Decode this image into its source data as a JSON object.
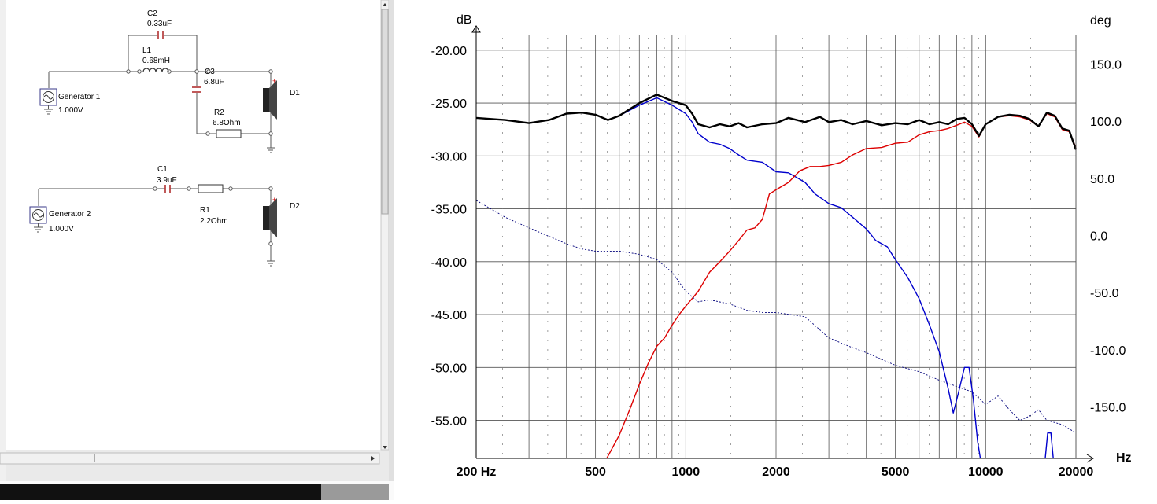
{
  "schematic": {
    "C2": {
      "name": "C2",
      "value": "0.33uF"
    },
    "L1": {
      "name": "L1",
      "value": "0.68mH"
    },
    "C3": {
      "name": "C3",
      "value": "6.8uF"
    },
    "R2": {
      "name": "R2",
      "value": "6.8Ohm"
    },
    "D1": {
      "name": "D1"
    },
    "gen1": {
      "name": "Generator 1",
      "value": "1.000V"
    },
    "C1": {
      "name": "C1",
      "value": "3.9uF"
    },
    "R1": {
      "name": "R1",
      "value": "2.2Ohm"
    },
    "D2": {
      "name": "D2"
    },
    "gen2": {
      "name": "Generator 2",
      "value": "1.000V"
    }
  },
  "chart_data": {
    "type": "line",
    "y_left_unit": "dB",
    "y_right_unit": "deg",
    "x_unit": "Hz",
    "x_scale": "log",
    "xlim": [
      200,
      20000
    ],
    "ylim_left": [
      -58.6,
      -18.6
    ],
    "ylim_right": [
      -195,
      175
    ],
    "x_tick_labels": [
      {
        "v": 200,
        "t": "200 Hz"
      },
      {
        "v": 500,
        "t": "500"
      },
      {
        "v": 1000,
        "t": "1000"
      },
      {
        "v": 2000,
        "t": "2000"
      },
      {
        "v": 5000,
        "t": "5000"
      },
      {
        "v": 10000,
        "t": "10000"
      },
      {
        "v": 20000,
        "t": "20000"
      }
    ],
    "y_left_ticks": [
      {
        "v": -20,
        "t": "-20.00"
      },
      {
        "v": -25,
        "t": "-25.00"
      },
      {
        "v": -30,
        "t": "-30.00"
      },
      {
        "v": -35,
        "t": "-35.00"
      },
      {
        "v": -40,
        "t": "-40.00"
      },
      {
        "v": -45,
        "t": "-45.00"
      },
      {
        "v": -50,
        "t": "-50.00"
      },
      {
        "v": -55,
        "t": "-55.00"
      }
    ],
    "y_right_ticks": [
      {
        "v": 150,
        "t": "150.0"
      },
      {
        "v": 100,
        "t": "100.0"
      },
      {
        "v": 50,
        "t": "50.0"
      },
      {
        "v": 0,
        "t": "0.0"
      },
      {
        "v": -50,
        "t": "-50.0"
      },
      {
        "v": -100,
        "t": "-100.0"
      },
      {
        "v": -150,
        "t": "-150.0"
      }
    ],
    "grid": true,
    "series": [
      {
        "color": "#0000cc",
        "axis": "left",
        "style": "solid",
        "points": [
          [
            200,
            -26.4
          ],
          [
            250,
            -26.6
          ],
          [
            300,
            -26.9
          ],
          [
            350,
            -26.6
          ],
          [
            400,
            -26.0
          ],
          [
            450,
            -25.9
          ],
          [
            500,
            -26.1
          ],
          [
            550,
            -26.6
          ],
          [
            600,
            -26.2
          ],
          [
            700,
            -25.2
          ],
          [
            800,
            -24.5
          ],
          [
            900,
            -25.2
          ],
          [
            1000,
            -26.0
          ],
          [
            1050,
            -26.8
          ],
          [
            1100,
            -27.9
          ],
          [
            1200,
            -28.7
          ],
          [
            1300,
            -28.9
          ],
          [
            1400,
            -29.3
          ],
          [
            1500,
            -29.9
          ],
          [
            1600,
            -30.4
          ],
          [
            1800,
            -30.6
          ],
          [
            2000,
            -31.5
          ],
          [
            2200,
            -31.6
          ],
          [
            2500,
            -32.5
          ],
          [
            2700,
            -33.6
          ],
          [
            3000,
            -34.5
          ],
          [
            3300,
            -34.9
          ],
          [
            3600,
            -35.8
          ],
          [
            4000,
            -36.9
          ],
          [
            4300,
            -38.0
          ],
          [
            4700,
            -38.6
          ],
          [
            5000,
            -39.8
          ],
          [
            5500,
            -41.5
          ],
          [
            6000,
            -43.5
          ],
          [
            6500,
            -46.0
          ],
          [
            7000,
            -48.5
          ],
          [
            7500,
            -52.0
          ],
          [
            7800,
            -54.3
          ],
          [
            8100,
            -52.5
          ],
          [
            8500,
            -50.0
          ],
          [
            8800,
            -50.0
          ],
          [
            9100,
            -53.0
          ],
          [
            9400,
            -57.0
          ],
          [
            9600,
            -58.6
          ]
        ]
      },
      {
        "color": "#0000cc",
        "axis": "left",
        "style": "solid",
        "points": [
          [
            15800,
            -58.6
          ],
          [
            16100,
            -56.2
          ],
          [
            16500,
            -56.2
          ],
          [
            16800,
            -58.6
          ]
        ]
      },
      {
        "color": "#dd0000",
        "axis": "left",
        "style": "solid",
        "points": [
          [
            545,
            -58.6
          ],
          [
            600,
            -56.4
          ],
          [
            650,
            -54.0
          ],
          [
            700,
            -51.6
          ],
          [
            750,
            -49.6
          ],
          [
            800,
            -48.0
          ],
          [
            850,
            -47.2
          ],
          [
            900,
            -46.0
          ],
          [
            950,
            -45.0
          ],
          [
            1000,
            -44.2
          ],
          [
            1100,
            -42.8
          ],
          [
            1200,
            -41.0
          ],
          [
            1300,
            -40.0
          ],
          [
            1400,
            -39.0
          ],
          [
            1500,
            -38.0
          ],
          [
            1600,
            -37.0
          ],
          [
            1700,
            -36.8
          ],
          [
            1800,
            -36.0
          ],
          [
            1900,
            -33.6
          ],
          [
            2000,
            -33.2
          ],
          [
            2200,
            -32.5
          ],
          [
            2400,
            -31.4
          ],
          [
            2600,
            -31.0
          ],
          [
            2800,
            -31.0
          ],
          [
            3000,
            -30.9
          ],
          [
            3300,
            -30.6
          ],
          [
            3600,
            -29.9
          ],
          [
            4000,
            -29.3
          ],
          [
            4500,
            -29.2
          ],
          [
            5000,
            -28.8
          ],
          [
            5500,
            -28.7
          ],
          [
            6000,
            -28.0
          ],
          [
            6500,
            -27.7
          ],
          [
            7000,
            -27.6
          ],
          [
            7500,
            -27.4
          ],
          [
            8000,
            -27.1
          ],
          [
            8500,
            -26.8
          ],
          [
            9000,
            -27.2
          ],
          [
            9500,
            -28.2
          ],
          [
            10000,
            -27.0
          ],
          [
            11000,
            -26.3
          ],
          [
            12000,
            -26.2
          ],
          [
            13000,
            -26.3
          ],
          [
            14000,
            -26.6
          ],
          [
            15000,
            -27.2
          ],
          [
            16000,
            -26.0
          ],
          [
            17000,
            -26.3
          ],
          [
            18000,
            -27.5
          ],
          [
            19000,
            -27.7
          ],
          [
            20000,
            -29.2
          ]
        ]
      },
      {
        "color": "#000000",
        "axis": "left",
        "style": "bold",
        "points": [
          [
            200,
            -26.4
          ],
          [
            250,
            -26.6
          ],
          [
            300,
            -26.9
          ],
          [
            350,
            -26.6
          ],
          [
            400,
            -26.0
          ],
          [
            450,
            -25.9
          ],
          [
            500,
            -26.1
          ],
          [
            550,
            -26.6
          ],
          [
            600,
            -26.2
          ],
          [
            700,
            -25.0
          ],
          [
            800,
            -24.2
          ],
          [
            900,
            -24.8
          ],
          [
            1000,
            -25.2
          ],
          [
            1050,
            -26.0
          ],
          [
            1100,
            -27.0
          ],
          [
            1200,
            -27.3
          ],
          [
            1300,
            -27.0
          ],
          [
            1400,
            -27.2
          ],
          [
            1500,
            -26.9
          ],
          [
            1600,
            -27.3
          ],
          [
            1800,
            -27.0
          ],
          [
            2000,
            -26.9
          ],
          [
            2200,
            -26.4
          ],
          [
            2500,
            -26.8
          ],
          [
            2800,
            -26.3
          ],
          [
            3000,
            -26.8
          ],
          [
            3300,
            -26.6
          ],
          [
            3600,
            -27.0
          ],
          [
            4000,
            -26.7
          ],
          [
            4500,
            -27.1
          ],
          [
            5000,
            -26.9
          ],
          [
            5500,
            -27.0
          ],
          [
            6000,
            -26.6
          ],
          [
            6500,
            -27.0
          ],
          [
            7000,
            -26.8
          ],
          [
            7500,
            -27.0
          ],
          [
            8000,
            -26.5
          ],
          [
            8500,
            -26.4
          ],
          [
            9000,
            -27.0
          ],
          [
            9500,
            -28.1
          ],
          [
            10000,
            -27.0
          ],
          [
            11000,
            -26.3
          ],
          [
            12000,
            -26.1
          ],
          [
            13000,
            -26.2
          ],
          [
            14000,
            -26.5
          ],
          [
            15000,
            -27.2
          ],
          [
            16000,
            -25.9
          ],
          [
            17000,
            -26.2
          ],
          [
            18000,
            -27.4
          ],
          [
            19000,
            -27.6
          ],
          [
            20000,
            -29.4
          ]
        ]
      },
      {
        "color": "#00007a",
        "axis": "left",
        "style": "dotted",
        "points": [
          [
            200,
            -34.2
          ],
          [
            250,
            -35.8
          ],
          [
            300,
            -36.8
          ],
          [
            350,
            -37.6
          ],
          [
            400,
            -38.3
          ],
          [
            450,
            -38.8
          ],
          [
            500,
            -39.0
          ],
          [
            600,
            -39.0
          ],
          [
            700,
            -39.3
          ],
          [
            800,
            -39.8
          ],
          [
            900,
            -41.0
          ],
          [
            1000,
            -42.8
          ],
          [
            1100,
            -43.8
          ],
          [
            1200,
            -43.6
          ],
          [
            1400,
            -44.0
          ],
          [
            1600,
            -44.6
          ],
          [
            1800,
            -44.8
          ],
          [
            2000,
            -44.8
          ],
          [
            2500,
            -45.2
          ],
          [
            3000,
            -47.2
          ],
          [
            3500,
            -48.0
          ],
          [
            4000,
            -48.6
          ],
          [
            5000,
            -49.8
          ],
          [
            6000,
            -50.4
          ],
          [
            7000,
            -51.2
          ],
          [
            8000,
            -51.8
          ],
          [
            9000,
            -52.3
          ],
          [
            10000,
            -53.5
          ],
          [
            11000,
            -52.7
          ],
          [
            12000,
            -54.0
          ],
          [
            13000,
            -55.0
          ],
          [
            14000,
            -54.6
          ],
          [
            15000,
            -54.0
          ],
          [
            16000,
            -55.0
          ],
          [
            18000,
            -55.4
          ],
          [
            20000,
            -56.2
          ]
        ]
      }
    ]
  }
}
